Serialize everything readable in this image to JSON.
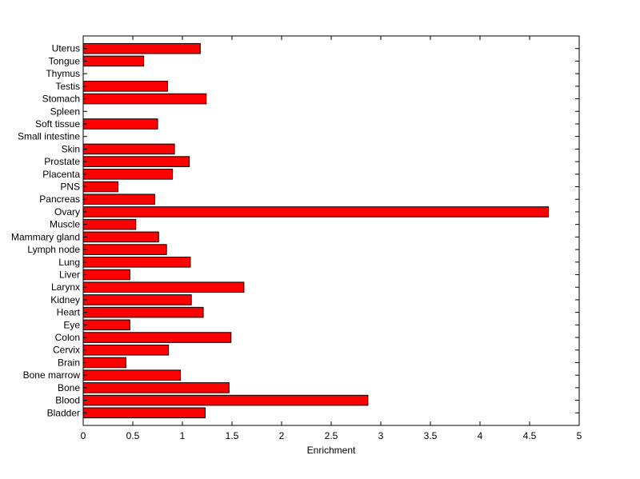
{
  "chart_data": {
    "type": "bar",
    "orientation": "horizontal",
    "title": "",
    "xlabel": "Enrichment",
    "ylabel": "",
    "xlim": [
      0,
      5
    ],
    "xticks": [
      0,
      0.5,
      1,
      1.5,
      2,
      2.5,
      3,
      3.5,
      4,
      4.5,
      5
    ],
    "xtick_labels": [
      "0",
      "0.5",
      "1",
      "1.5",
      "2",
      "2.5",
      "3",
      "3.5",
      "4",
      "4.5",
      "5"
    ],
    "grid": false,
    "legend": "none",
    "bar_color": "#ff0000",
    "bar_edge_color": "#000000",
    "categories": [
      "Bladder",
      "Blood",
      "Bone",
      "Bone marrow",
      "Brain",
      "Cervix",
      "Colon",
      "Eye",
      "Heart",
      "Kidney",
      "Larynx",
      "Liver",
      "Lung",
      "Lymph node",
      "Mammary gland",
      "Muscle",
      "Ovary",
      "Pancreas",
      "PNS",
      "Placenta",
      "Prostate",
      "Skin",
      "Small intestine",
      "Soft tissue",
      "Spleen",
      "Stomach",
      "Testis",
      "Thymus",
      "Tongue",
      "Uterus"
    ],
    "values": [
      1.23,
      2.87,
      1.47,
      0.98,
      0.43,
      0.86,
      1.49,
      0.47,
      1.21,
      1.09,
      1.62,
      0.47,
      1.08,
      0.84,
      0.76,
      0.53,
      4.69,
      0.72,
      0.35,
      0.9,
      1.07,
      0.92,
      0,
      0.75,
      0,
      1.24,
      0.85,
      0,
      0.61,
      1.18
    ]
  }
}
